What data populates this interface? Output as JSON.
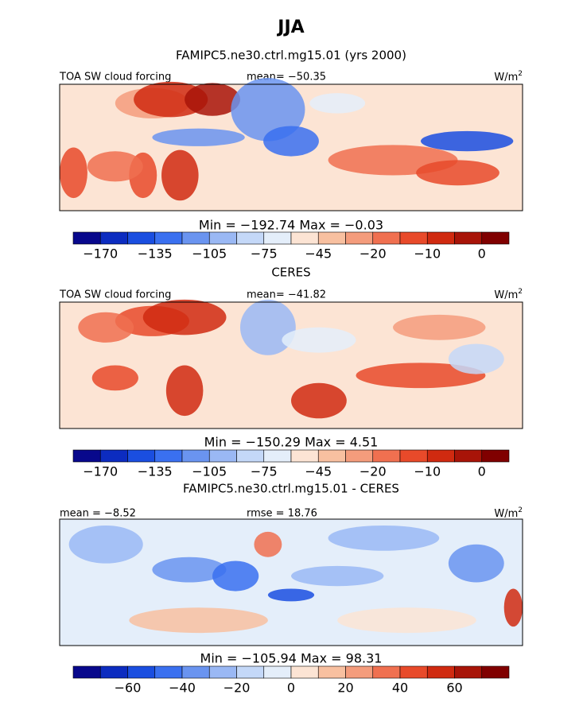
{
  "title": "JJA",
  "colorbar_colors": [
    "#08088c",
    "#0c2cc0",
    "#1a4ee0",
    "#3a70f0",
    "#6a94f0",
    "#9ab8f4",
    "#c4d8f8",
    "#e4eefa",
    "#fce4d4",
    "#f8c0a0",
    "#f49c7c",
    "#f07050",
    "#e84a2a",
    "#d02a10",
    "#a81408",
    "#800000"
  ],
  "panels": [
    {
      "title": "FAMIPC5.ne30.ctrl.mg15.01 (yrs 2000)",
      "left_label": "TOA SW cloud forcing",
      "center_label": "mean= −50.35",
      "units": "W/m",
      "units_sup": "2",
      "stats": "Min = −192.74 Max =  −0.03",
      "colorbar_labels": [
        "−170",
        "−135",
        "−105",
        "−75",
        "−45",
        "−20",
        "−10",
        "0"
      ]
    },
    {
      "title": "CERES",
      "left_label": "TOA SW cloud forcing",
      "center_label": "mean= −41.82",
      "units": "W/m",
      "units_sup": "2",
      "stats": "Min = −150.29 Max =   4.51",
      "colorbar_labels": [
        "−170",
        "−135",
        "−105",
        "−75",
        "−45",
        "−20",
        "−10",
        "0"
      ]
    },
    {
      "title": "FAMIPC5.ne30.ctrl.mg15.01 - CERES",
      "left_label": "mean =  −8.52",
      "center_label": "rmse =  18.76",
      "units": "W/m",
      "units_sup": "2",
      "stats": "Min = −105.94 Max =  98.31",
      "colorbar_labels": [
        "−60",
        "−40",
        "−20",
        "0",
        "20",
        "40",
        "60"
      ]
    }
  ]
}
